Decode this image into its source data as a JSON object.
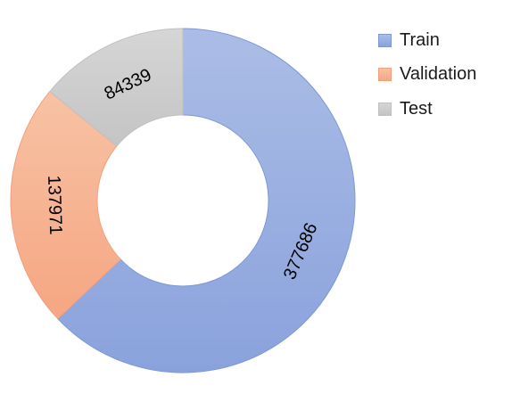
{
  "chart_data": {
    "type": "pie",
    "variant": "donut",
    "title": "",
    "labels": [
      "Train",
      "Validation",
      "Test"
    ],
    "values": [
      377686,
      137971,
      84339
    ],
    "colors": {
      "fill_start": [
        "#abbde6",
        "#f7c2a4",
        "#d6d6d6"
      ],
      "fill_end": [
        "#8aa2dc",
        "#f6a682",
        "#c4c4c4"
      ],
      "stroke": [
        "#7f97d6",
        "#f2a07c",
        "#c0c0c0"
      ]
    },
    "legend_position": "right",
    "data_labels": true
  }
}
